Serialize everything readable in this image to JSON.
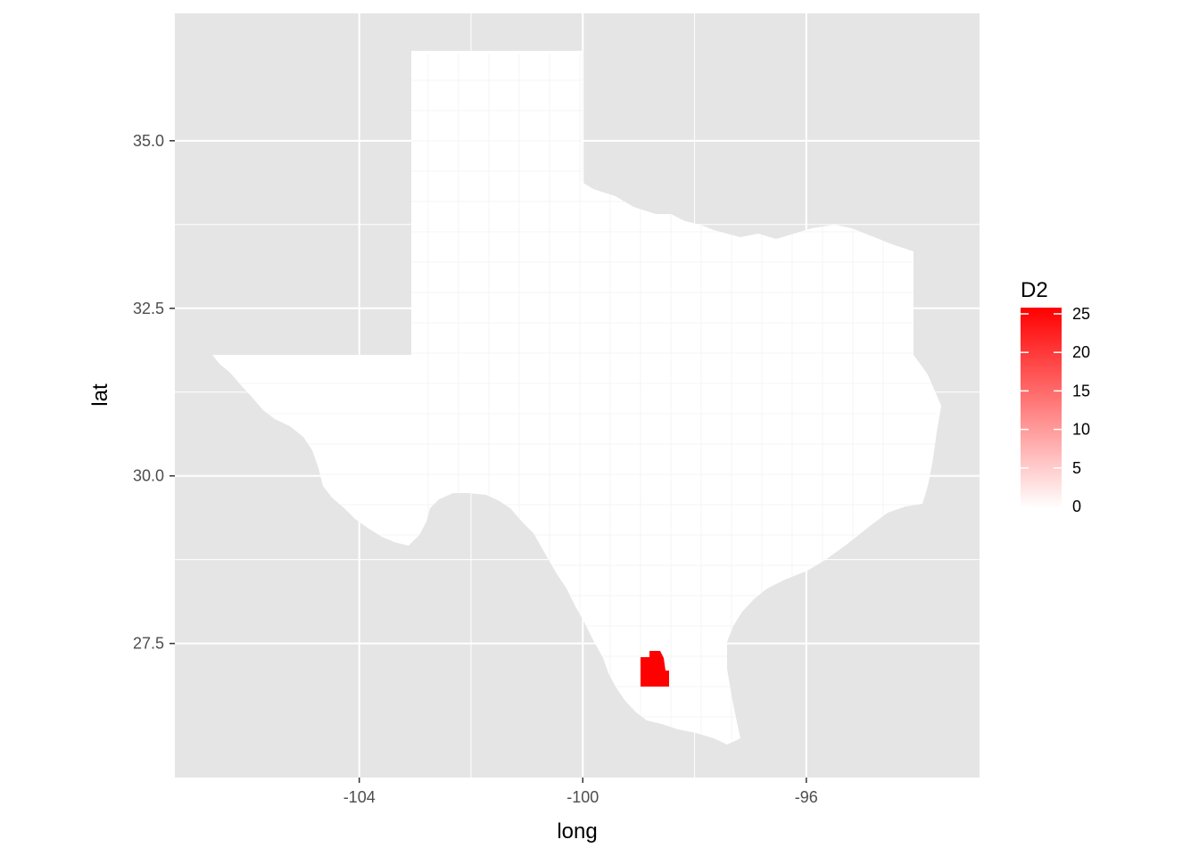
{
  "chart_data": {
    "type": "choropleth-map",
    "region": "Texas counties",
    "xlabel": "long",
    "ylabel": "lat",
    "xlim": [
      -107.3,
      -92.9
    ],
    "ylim": [
      25.5,
      36.9
    ],
    "x_ticks": [
      {
        "value": -104,
        "label": "-104"
      },
      {
        "value": -100,
        "label": "-100"
      },
      {
        "value": -96,
        "label": "-96"
      }
    ],
    "y_ticks": [
      {
        "value": 27.5,
        "label": "27.5"
      },
      {
        "value": 30.0,
        "label": "30.0"
      },
      {
        "value": 32.5,
        "label": "32.5"
      },
      {
        "value": 35.0,
        "label": "35.0"
      }
    ],
    "legend": {
      "title": "D2",
      "placement": "right",
      "min": 0,
      "max": 25,
      "low_color": "#ffffff",
      "high_color": "#ff0000",
      "ticks": [
        {
          "value": 0,
          "label": "0"
        },
        {
          "value": 5,
          "label": "5"
        },
        {
          "value": 10,
          "label": "10"
        },
        {
          "value": 15,
          "label": "15"
        },
        {
          "value": 20,
          "label": "20"
        },
        {
          "value": 25,
          "label": "25"
        }
      ]
    },
    "highlighted_regions": [
      {
        "long_range": [
          -98.54,
          -98.04
        ],
        "lat_range": [
          26.78,
          27.39
        ],
        "value": 25
      }
    ],
    "default_value": 0,
    "colors": {
      "panel_background": "#e5e5e5",
      "grid": "#ffffff",
      "state_fill": "#ffffff",
      "county_border": "#f4f4f4"
    }
  }
}
